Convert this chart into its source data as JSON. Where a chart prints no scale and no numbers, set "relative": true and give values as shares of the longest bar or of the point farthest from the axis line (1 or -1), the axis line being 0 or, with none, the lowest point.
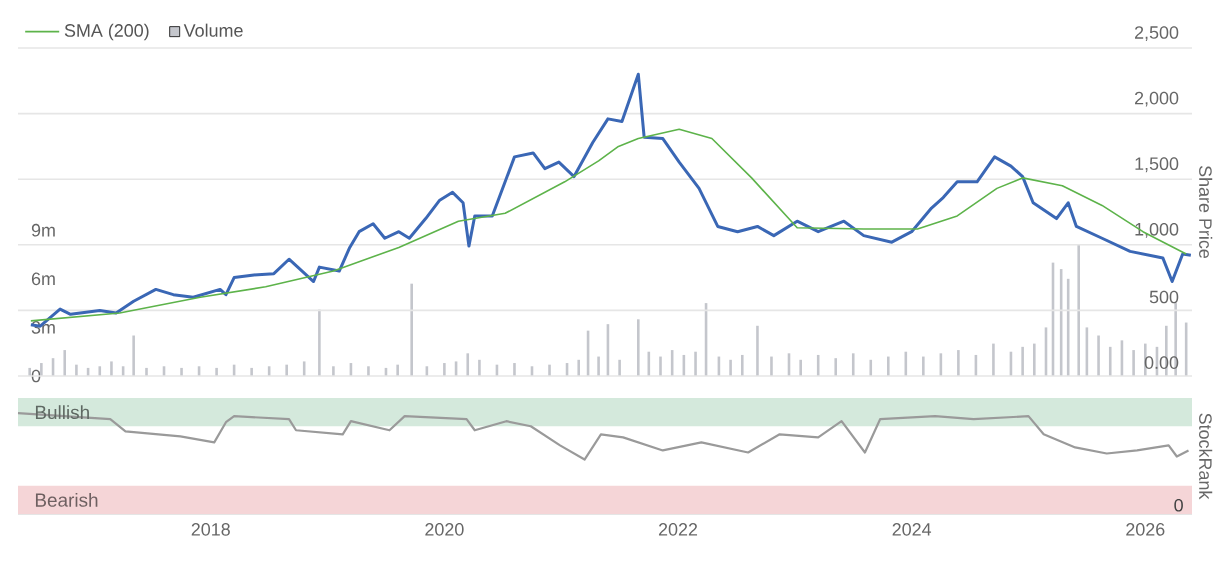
{
  "chart_data": [
    {
      "type": "line",
      "xlim": [
        2016.35,
        2026.4
      ],
      "ylim": [
        0,
        20.25
      ],
      "yticks": [
        {
          "value": 0,
          "label": "0"
        },
        {
          "value": 3,
          "label": "3m"
        },
        {
          "value": 6,
          "label": "6m"
        },
        {
          "value": 9,
          "label": "9m"
        }
      ],
      "y2lim": [
        0,
        2500
      ],
      "y2ticks": [
        {
          "value": 0,
          "label": "0.00"
        },
        500,
        {
          "value": 1000,
          "label": "1,000"
        },
        {
          "value": 1500,
          "label": "1,500"
        },
        {
          "value": 2000,
          "label": "2,000"
        },
        {
          "value": 2500,
          "label": "2,500"
        }
      ],
      "y2label": "Share Price",
      "grid": "y",
      "legend": "top left",
      "tick_labels": "y",
      "series": [
        {
          "color": "#3a67b5",
          "axis": "y2",
          "x": [
            2016.46,
            2016.54,
            2016.71,
            2016.8,
            2017.05,
            2017.19,
            2017.34,
            2017.53,
            2017.68,
            2017.85,
            2018.08,
            2018.13,
            2018.2,
            2018.37,
            2018.54,
            2018.67,
            2018.88,
            2018.93,
            2019.1,
            2019.19,
            2019.27,
            2019.39,
            2019.49,
            2019.61,
            2019.7,
            2019.84,
            2019.96,
            2020.07,
            2020.16,
            2020.21,
            2020.26,
            2020.41,
            2020.52,
            2020.6,
            2020.76,
            2020.86,
            2020.98,
            2021.11,
            2021.27,
            2021.4,
            2021.52,
            2021.66,
            2021.71,
            2021.87,
            2022.01,
            2022.18,
            2022.34,
            2022.51,
            2022.68,
            2022.82,
            2023.02,
            2023.2,
            2023.42,
            2023.59,
            2023.83,
            2024.0,
            2024.17,
            2024.27,
            2024.39,
            2024.56,
            2024.71,
            2024.85,
            2024.95,
            2025.04,
            2025.24,
            2025.34,
            2025.41,
            2025.63,
            2025.87,
            2026.15,
            2026.23,
            2026.32,
            2026.39
          ],
          "values": [
            390,
            380,
            510,
            470,
            500,
            480,
            570,
            660,
            620,
            600,
            660,
            620,
            750,
            770,
            780,
            890,
            720,
            830,
            800,
            980,
            1100,
            1160,
            1050,
            1100,
            1050,
            1200,
            1340,
            1400,
            1320,
            990,
            1220,
            1220,
            1480,
            1670,
            1700,
            1580,
            1630,
            1520,
            1780,
            1960,
            1940,
            2300,
            1820,
            1810,
            1630,
            1430,
            1140,
            1100,
            1140,
            1070,
            1180,
            1100,
            1180,
            1070,
            1020,
            1100,
            1280,
            1360,
            1480,
            1480,
            1670,
            1600,
            1520,
            1320,
            1200,
            1320,
            1140,
            1050,
            950,
            900,
            720,
            930,
            920
          ]
        },
        {
          "name": "SMA (200)",
          "color": "#5db34a",
          "axis": "y2",
          "x": [
            2016.46,
            2017.22,
            2017.91,
            2018.47,
            2019.05,
            2019.61,
            2020.12,
            2020.52,
            2021.03,
            2021.32,
            2021.49,
            2021.66,
            2022.01,
            2022.29,
            2022.63,
            2023.02,
            2023.59,
            2024.05,
            2024.39,
            2024.73,
            2024.95,
            2025.29,
            2025.63,
            2025.98,
            2026.35
          ],
          "values": [
            420,
            480,
            600,
            680,
            800,
            980,
            1180,
            1240,
            1480,
            1640,
            1750,
            1810,
            1880,
            1810,
            1510,
            1130,
            1120,
            1120,
            1220,
            1430,
            1510,
            1450,
            1300,
            1100,
            930
          ]
        },
        {
          "name": "Volume",
          "type": "bar",
          "color": "#c4c6cc",
          "axis": "y",
          "x": [
            2016.45,
            2016.55,
            2016.65,
            2016.75,
            2016.85,
            2016.95,
            2017.05,
            2017.15,
            2017.25,
            2017.34,
            2017.45,
            2017.6,
            2017.75,
            2017.9,
            2018.05,
            2018.2,
            2018.35,
            2018.5,
            2018.65,
            2018.8,
            2018.93,
            2019.05,
            2019.2,
            2019.35,
            2019.5,
            2019.6,
            2019.72,
            2019.85,
            2020.0,
            2020.1,
            2020.2,
            2020.3,
            2020.45,
            2020.6,
            2020.75,
            2020.9,
            2021.05,
            2021.15,
            2021.23,
            2021.32,
            2021.4,
            2021.5,
            2021.66,
            2021.75,
            2021.85,
            2021.95,
            2022.05,
            2022.15,
            2022.24,
            2022.35,
            2022.45,
            2022.55,
            2022.68,
            2022.8,
            2022.95,
            2023.05,
            2023.2,
            2023.35,
            2023.5,
            2023.65,
            2023.8,
            2023.95,
            2024.1,
            2024.25,
            2024.4,
            2024.55,
            2024.7,
            2024.85,
            2024.95,
            2025.05,
            2025.15,
            2025.21,
            2025.28,
            2025.34,
            2025.43,
            2025.5,
            2025.6,
            2025.7,
            2025.8,
            2025.9,
            2026.0,
            2026.1,
            2026.18,
            2026.26,
            2026.35
          ],
          "values": [
            0.5,
            0.8,
            1.1,
            1.6,
            0.7,
            0.5,
            0.6,
            0.9,
            0.6,
            2.5,
            0.5,
            0.6,
            0.5,
            0.6,
            0.5,
            0.7,
            0.5,
            0.6,
            0.7,
            0.9,
            4.1,
            0.6,
            0.8,
            0.6,
            0.5,
            0.7,
            5.7,
            0.6,
            0.8,
            0.9,
            1.4,
            1.0,
            0.7,
            0.8,
            0.6,
            0.7,
            0.8,
            1.0,
            2.8,
            1.2,
            3.2,
            1.0,
            3.5,
            1.5,
            1.2,
            1.6,
            1.3,
            1.5,
            4.5,
            1.2,
            1.0,
            1.3,
            3.1,
            1.2,
            1.4,
            1.0,
            1.3,
            1.1,
            1.4,
            1.0,
            1.2,
            1.5,
            1.2,
            1.4,
            1.6,
            1.3,
            2.0,
            1.5,
            1.8,
            2.0,
            3.0,
            7.0,
            6.6,
            6.0,
            8.1,
            3.0,
            2.5,
            1.8,
            2.2,
            1.6,
            2.0,
            1.8,
            3.1,
            4.5,
            3.3
          ]
        }
      ]
    },
    {
      "type": "line",
      "relative": true,
      "xlim": [
        2016.35,
        2026.4
      ],
      "xticks": [
        2018,
        2020,
        2022,
        2024,
        2026
      ],
      "ylabel": "StockRank",
      "annotations": [
        "0"
      ],
      "bands": [
        {
          "axis": "y",
          "from": 0.87,
          "to": 1.15,
          "label": "Bullish",
          "color": "#d4e9dc"
        },
        {
          "axis": "y",
          "from": 0,
          "to": 0.28,
          "label": "Bearish",
          "color": "#f5d5d7"
        }
      ],
      "series": [
        {
          "color": "#9a9a9a",
          "x": [
            2016.35,
            2017.14,
            2017.27,
            2017.74,
            2018.03,
            2018.13,
            2018.2,
            2018.67,
            2018.73,
            2019.13,
            2019.2,
            2019.53,
            2019.66,
            2020.19,
            2020.26,
            2020.53,
            2020.74,
            2020.99,
            2021.2,
            2021.34,
            2021.53,
            2021.87,
            2022.2,
            2022.6,
            2022.87,
            2023.2,
            2023.4,
            2023.6,
            2023.73,
            2024.2,
            2024.53,
            2025.0,
            2025.13,
            2025.4,
            2025.67,
            2025.93,
            2026.2,
            2026.27,
            2026.37
          ],
          "values": [
            1,
            0.94,
            0.82,
            0.77,
            0.71,
            0.91,
            0.97,
            0.94,
            0.83,
            0.79,
            0.92,
            0.83,
            0.97,
            0.94,
            0.83,
            0.92,
            0.87,
            0.68,
            0.54,
            0.79,
            0.76,
            0.63,
            0.71,
            0.61,
            0.79,
            0.76,
            0.92,
            0.61,
            0.94,
            0.97,
            0.94,
            0.97,
            0.79,
            0.66,
            0.6,
            0.63,
            0.68,
            0.57,
            0.63
          ]
        }
      ]
    }
  ]
}
